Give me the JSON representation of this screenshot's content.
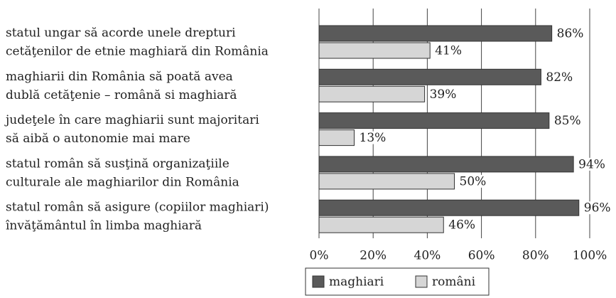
{
  "chart_data": {
    "type": "hbar",
    "categories": [
      [
        "statul ungar să acorde unele drepturi",
        "cetăţenilor de etnie maghiară din România"
      ],
      [
        "maghiarii din România să poată avea",
        "dublă cetăţenie – română si maghiară"
      ],
      [
        "judeţele în care maghiarii sunt majoritari",
        "să aibă o autonomie mai mare"
      ],
      [
        "statul român să susţină organizaţiile",
        "culturale ale maghiarilor din România"
      ],
      [
        "statul român să asigure (copiilor maghiari)",
        "învăţământul în limba maghiară"
      ]
    ],
    "series": [
      {
        "name": "maghiari",
        "color": "#5a5a5a",
        "values": [
          86,
          82,
          85,
          94,
          96
        ],
        "value_labels": [
          "86%",
          "82%",
          "85%",
          "94%",
          "96%"
        ]
      },
      {
        "name": "români",
        "color": "#d6d6d6",
        "values": [
          41,
          39,
          13,
          50,
          46
        ],
        "value_labels": [
          "41%",
          "39%",
          "13%",
          "50%",
          "46%"
        ]
      }
    ],
    "xlim": [
      0,
      100
    ],
    "xticks": [
      {
        "value": 0,
        "label": "0%"
      },
      {
        "value": 20,
        "label": "20%"
      },
      {
        "value": 40,
        "label": "40%"
      },
      {
        "value": 60,
        "label": "60%"
      },
      {
        "value": 80,
        "label": "80%"
      },
      {
        "value": 100,
        "label": "100%"
      }
    ],
    "grid": true,
    "legend": "bottom"
  }
}
